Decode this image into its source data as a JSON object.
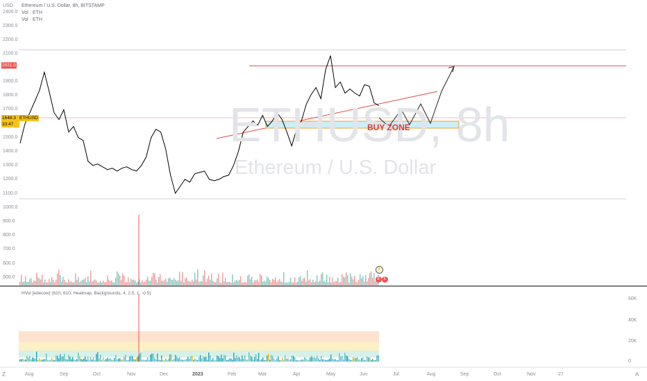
{
  "header": {
    "title": "Ethereum / U.S. Dollar, 8h, BITSTAMP",
    "vol1": "Vol · ETH",
    "vol2": "Vol · ETH",
    "currency": "USD"
  },
  "watermark": {
    "symbol": "ETHUSD, 8h",
    "name": "Ethereum / U.S. Dollar"
  },
  "price_axis": [
    "2400.0",
    "2300.0",
    "2200.0",
    "2100.0",
    "1900.0",
    "1800.0",
    "1700.0",
    "1500.0",
    "1400.0",
    "1300.0",
    "1200.0",
    "1100.0"
  ],
  "price_tags": {
    "resistance": "2021.0",
    "current": "1648.3",
    "countdown": "33:47",
    "symbol": "ETHUSD"
  },
  "volume_axis": [
    "1000.0",
    "900.0",
    "800.0",
    "700.0",
    "600.0",
    "500.0"
  ],
  "annotation": {
    "buy_zone": "BUY ZONE"
  },
  "hvol": {
    "label": "HVol [edecow] (610, 610, Heatmap, Backgrounds, 4, 2.5, 1, -0.5)",
    "axis": [
      "60K",
      "40K",
      "20K",
      "0"
    ]
  },
  "time_axis": [
    "Aug",
    "Sep",
    "Oct",
    "Nov",
    "Dec",
    "2023",
    "Feb",
    "Mar",
    "Apr",
    "May",
    "Jun",
    "Jul",
    "Aug",
    "Sep",
    "Oct",
    "Nov",
    "27"
  ],
  "footer": {
    "left_icon": "Z",
    "right_icon": "A"
  },
  "colors": {
    "up": "#26a69a",
    "down": "#ef5350",
    "candle": "#000000",
    "resistance": "#e04848",
    "buy_zone_fill": "#cdeef6",
    "buy_zone_border": "#f0a030",
    "accent": "#f7c21a"
  },
  "chart_data": {
    "type": "line",
    "title": "Ethereum / U.S. Dollar, 8h, BITSTAMP",
    "ylim": [
      1080,
      2460
    ],
    "x_labels": [
      "Aug",
      "Sep",
      "Oct",
      "Nov",
      "Dec",
      "2023",
      "Feb",
      "Mar",
      "Apr",
      "May",
      "Jun"
    ],
    "series": [
      {
        "name": "ETHUSD",
        "values": [
          1480,
          1620,
          1700,
          1780,
          1860,
          1990,
          1850,
          1700,
          1650,
          1720,
          1560,
          1600,
          1520,
          1500,
          1350,
          1320,
          1330,
          1310,
          1290,
          1300,
          1280,
          1300,
          1310,
          1290,
          1280,
          1320,
          1380,
          1520,
          1580,
          1560,
          1440,
          1250,
          1120,
          1170,
          1220,
          1200,
          1260,
          1270,
          1280,
          1220,
          1210,
          1220,
          1240,
          1250,
          1320,
          1420,
          1560,
          1600,
          1640,
          1610,
          1680,
          1600,
          1640,
          1700,
          1650,
          1560,
          1460,
          1580,
          1640,
          1760,
          1830,
          1880,
          1800,
          2010,
          2110,
          1880,
          1920,
          1840,
          1870,
          1840,
          1820,
          1900,
          1890,
          1770,
          1750
        ]
      }
    ]
  }
}
